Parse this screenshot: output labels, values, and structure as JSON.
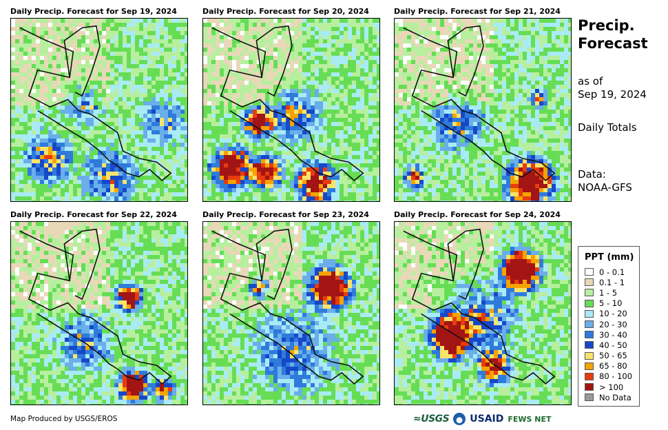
{
  "panels": [
    {
      "title": "Daily Precip. Forecast for Sep 19, 2024"
    },
    {
      "title": "Daily Precip. Forecast for Sep 20, 2024"
    },
    {
      "title": "Daily Precip. Forecast for Sep 21, 2024"
    },
    {
      "title": "Daily Precip. Forecast for Sep 22, 2024"
    },
    {
      "title": "Daily Precip. Forecast for Sep 23, 2024"
    },
    {
      "title": "Daily Precip. Forecast for Sep 24, 2024"
    }
  ],
  "sidebar": {
    "title_line1": "Precip.",
    "title_line2": "Forecast",
    "asof_line1": "as of",
    "asof_line2": "Sep 19, 2024",
    "totals": "Daily Totals",
    "data_line1": "Data:",
    "data_line2": "NOAA-GFS"
  },
  "legend": {
    "title": "PPT (mm)",
    "items": [
      {
        "label": "0 - 0.1",
        "color": "#ffffff"
      },
      {
        "label": "0.1 - 1",
        "color": "#e9d8b8"
      },
      {
        "label": "1 - 5",
        "color": "#b7ef9f"
      },
      {
        "label": "5 - 10",
        "color": "#66dd55"
      },
      {
        "label": "10 - 20",
        "color": "#a9ebf5"
      },
      {
        "label": "20 - 30",
        "color": "#6aaeea"
      },
      {
        "label": "30 - 40",
        "color": "#2e7bdc"
      },
      {
        "label": "40 - 50",
        "color": "#1748c9"
      },
      {
        "label": "50 - 65",
        "color": "#f8e46a"
      },
      {
        "label": "65 - 80",
        "color": "#f5a300"
      },
      {
        "label": "80 - 100",
        "color": "#e83c0e"
      },
      {
        "label": "> 100",
        "color": "#a31414"
      },
      {
        "label": "No Data",
        "color": "#999999"
      }
    ]
  },
  "credit": "Map Produced by USGS/EROS",
  "logos": {
    "usgs": "≈USGS",
    "usaid": "USAID",
    "fews": "FEWS NET"
  }
}
